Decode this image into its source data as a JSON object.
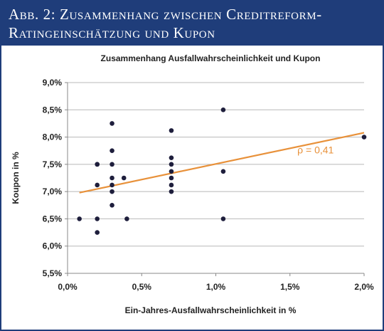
{
  "header": {
    "line1": "Abb. 2: Zusammenhang zwischen Creditreform-",
    "line2": "Ratingeinschätzung und Kupon"
  },
  "chart_data": {
    "type": "scatter",
    "title": "Zusammenhang Ausfallwahrscheinlichkeit und Kupon",
    "xlabel": "Ein-Jahres-Ausfallwahrscheinlichkeit in %",
    "ylabel": "Koupon in %",
    "xlim": [
      0.0,
      2.0
    ],
    "ylim": [
      5.5,
      9.0
    ],
    "x_ticks": [
      0.0,
      0.5,
      1.0,
      1.5,
      2.0
    ],
    "x_tick_labels": [
      "0,0%",
      "0,5%",
      "1,0%",
      "1,5%",
      "2,0%"
    ],
    "y_ticks": [
      5.5,
      6.0,
      6.5,
      7.0,
      7.5,
      8.0,
      8.5,
      9.0
    ],
    "y_tick_labels": [
      "5,5%",
      "6,0%",
      "6,5%",
      "7,0%",
      "7,5%",
      "8,0%",
      "8,5%",
      "9,0%"
    ],
    "grid": "horizontal",
    "points": [
      {
        "x": 0.08,
        "y": 6.5
      },
      {
        "x": 0.2,
        "y": 7.5
      },
      {
        "x": 0.2,
        "y": 7.5
      },
      {
        "x": 0.2,
        "y": 7.12
      },
      {
        "x": 0.2,
        "y": 6.5
      },
      {
        "x": 0.2,
        "y": 6.25
      },
      {
        "x": 0.3,
        "y": 8.25
      },
      {
        "x": 0.3,
        "y": 7.75
      },
      {
        "x": 0.3,
        "y": 7.5
      },
      {
        "x": 0.3,
        "y": 7.25
      },
      {
        "x": 0.3,
        "y": 7.12
      },
      {
        "x": 0.3,
        "y": 7.0
      },
      {
        "x": 0.3,
        "y": 6.75
      },
      {
        "x": 0.38,
        "y": 7.25
      },
      {
        "x": 0.4,
        "y": 6.5
      },
      {
        "x": 0.7,
        "y": 8.12
      },
      {
        "x": 0.7,
        "y": 7.62
      },
      {
        "x": 0.7,
        "y": 7.5
      },
      {
        "x": 0.7,
        "y": 7.37
      },
      {
        "x": 0.7,
        "y": 7.25
      },
      {
        "x": 0.7,
        "y": 7.12
      },
      {
        "x": 0.7,
        "y": 7.0
      },
      {
        "x": 1.05,
        "y": 8.5
      },
      {
        "x": 1.05,
        "y": 7.37
      },
      {
        "x": 1.05,
        "y": 6.5
      },
      {
        "x": 2.0,
        "y": 8.0
      }
    ],
    "trendline": {
      "x": [
        0.08,
        2.0
      ],
      "y": [
        6.98,
        8.08
      ]
    },
    "annotation": {
      "text": "ρ = 0,41",
      "x": 1.55,
      "y": 7.7
    },
    "colors": {
      "points": "#1e1e3c",
      "trendline": "#e8913a",
      "grid": "#b8b8b8",
      "header": "#1f3d7a"
    }
  }
}
